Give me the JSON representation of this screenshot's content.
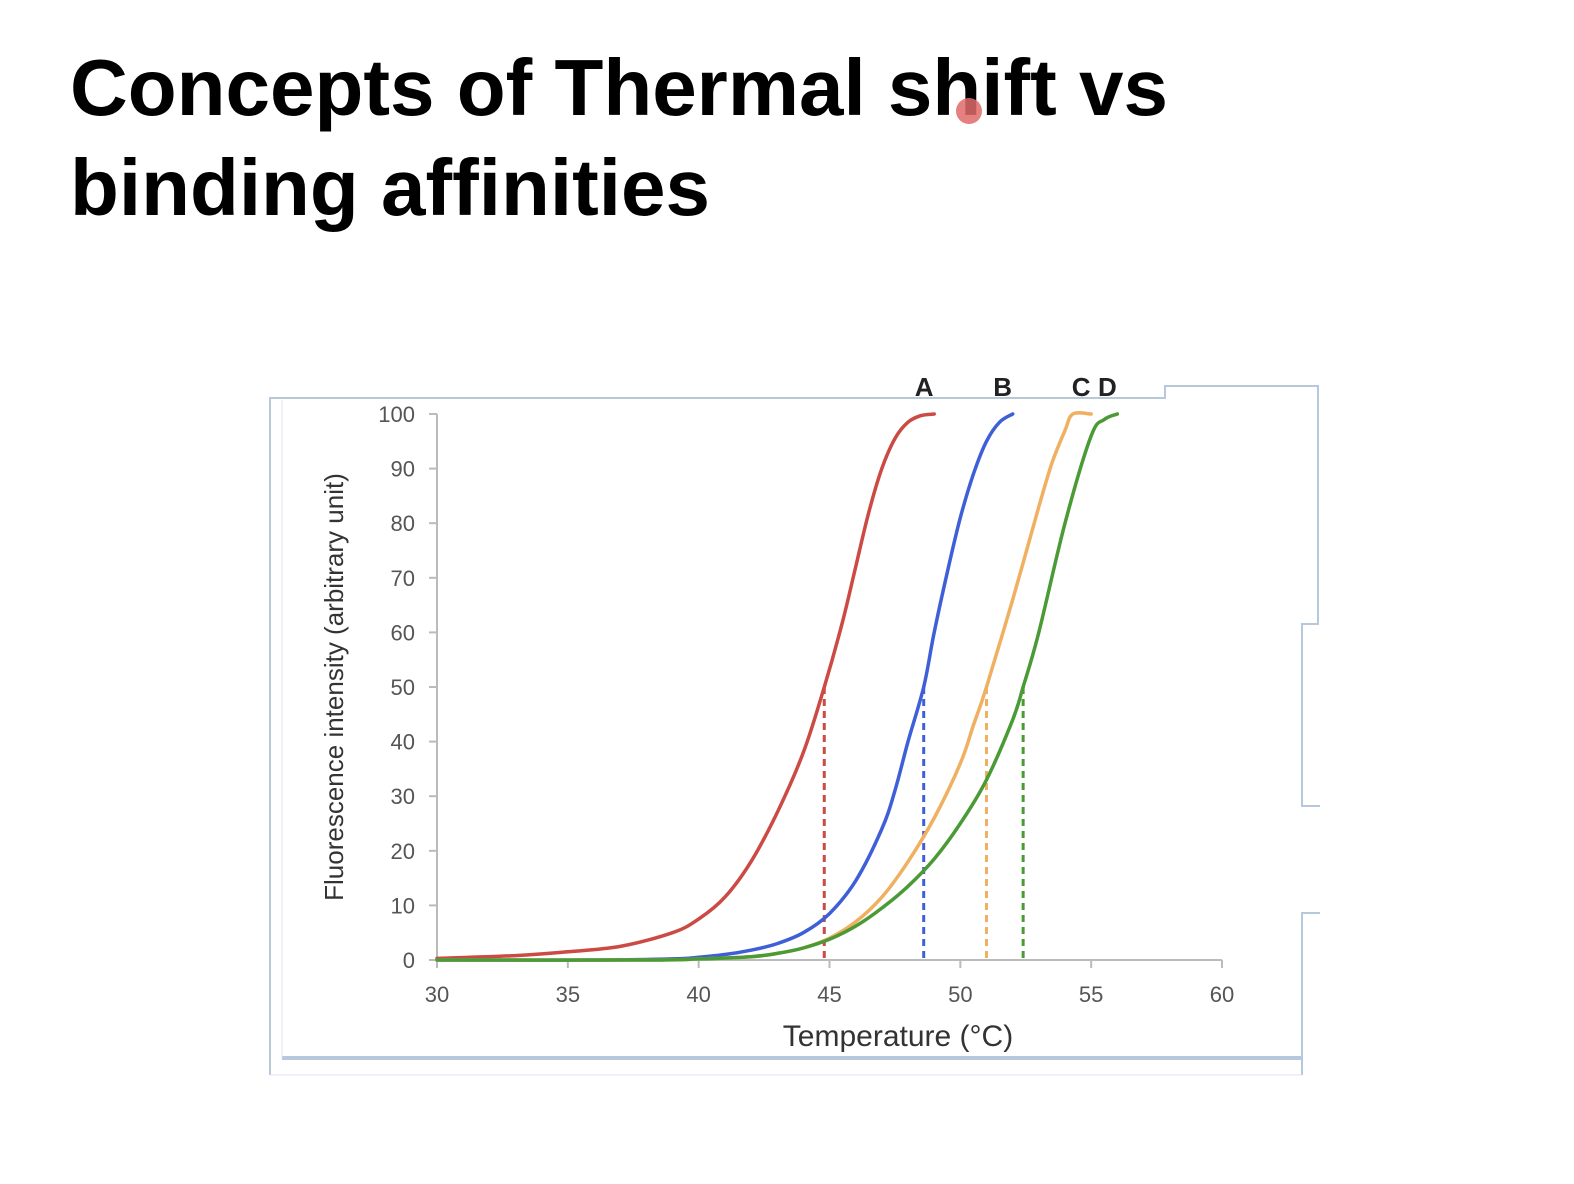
{
  "slide": {
    "title_line1": "Concepts of Thermal shift vs",
    "title_line2": "binding affinities"
  },
  "colors": {
    "A": "#cc4a44",
    "B": "#3f5fd8",
    "C": "#f0b061",
    "D": "#4a9a35",
    "frame": "#b8c8dc",
    "axis": "#bbbbbb",
    "text": "#333333",
    "pointer": "#e06a6a"
  },
  "chart_data": {
    "type": "line",
    "xlabel": "Temperature (°C)",
    "ylabel": "Fluorescence intensity (arbitrary unit)",
    "xlim": [
      30,
      60
    ],
    "ylim": [
      0,
      100
    ],
    "xticks": [
      30,
      35,
      40,
      45,
      50,
      55,
      60
    ],
    "yticks": [
      0,
      10,
      20,
      30,
      40,
      50,
      60,
      70,
      80,
      90,
      100
    ],
    "grid": false,
    "series": [
      {
        "name": "A",
        "tm": 44.8,
        "x": [
          30,
          33,
          35,
          37,
          39,
          40,
          41,
          42,
          43,
          44,
          44.8,
          45.5,
          46,
          46.5,
          47,
          47.5,
          48,
          48.5,
          49
        ],
        "y": [
          0.3,
          0.8,
          1.5,
          2.5,
          5,
          7.5,
          11.5,
          18,
          27,
          38,
          50,
          62,
          72,
          82,
          90,
          95.5,
          98.5,
          99.7,
          100
        ]
      },
      {
        "name": "B",
        "tm": 48.6,
        "x": [
          30,
          36,
          39,
          40,
          41,
          42,
          43,
          44,
          45,
          46,
          47,
          47.5,
          48,
          48.6,
          49,
          49.5,
          50,
          50.5,
          51,
          51.5,
          52
        ],
        "y": [
          0,
          0,
          0.2,
          0.5,
          1,
          1.8,
          3,
          5,
          8.5,
          14.5,
          24,
          31,
          40,
          50,
          60,
          71,
          81,
          89,
          95,
          98.5,
          100
        ]
      },
      {
        "name": "C",
        "tm": 51.0,
        "x": [
          30,
          38,
          40,
          42,
          43,
          44,
          45,
          46,
          47,
          48,
          49,
          50,
          50.5,
          51,
          52,
          53,
          53.5,
          54,
          54.3,
          55
        ],
        "y": [
          0,
          0,
          0.2,
          0.6,
          1.2,
          2.2,
          4,
          7,
          11.5,
          18,
          26,
          36,
          43,
          50,
          66,
          83,
          91,
          97,
          100,
          100
        ]
      },
      {
        "name": "D",
        "tm": 52.4,
        "x": [
          30,
          38,
          40,
          42,
          43,
          44,
          45,
          46,
          47,
          48,
          49,
          50,
          51,
          52,
          52.4,
          53,
          54,
          55,
          55.5,
          56
        ],
        "y": [
          0,
          0,
          0.2,
          0.6,
          1.2,
          2.2,
          3.8,
          6.2,
          9.5,
          13.5,
          18.5,
          25,
          33,
          44,
          50,
          60,
          80,
          96,
          99,
          100
        ]
      }
    ],
    "tm_marker_value": 50
  }
}
